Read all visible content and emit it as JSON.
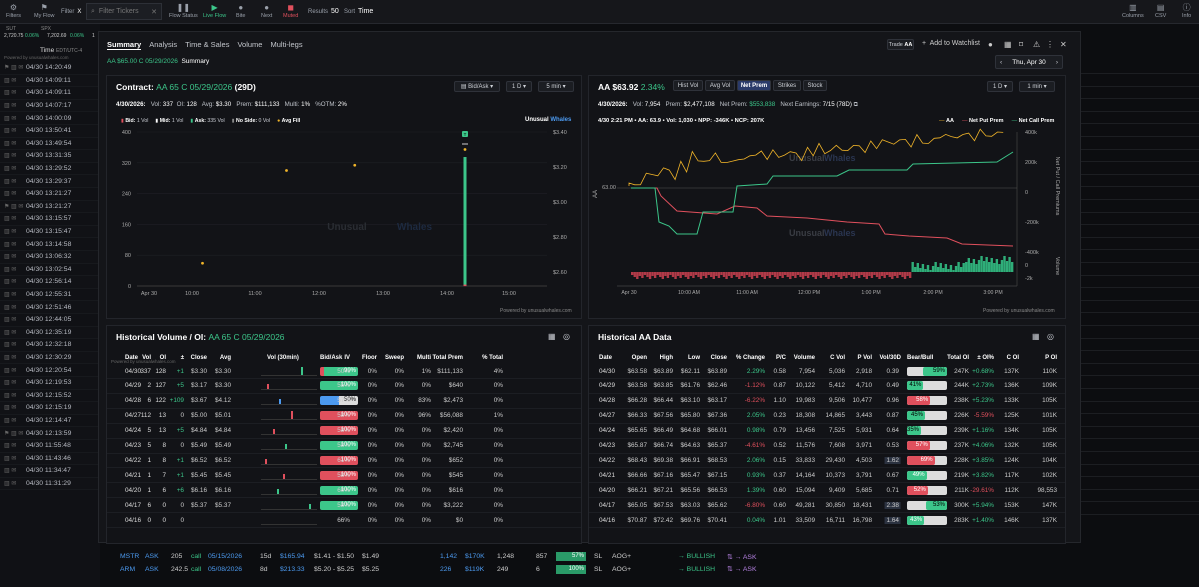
{
  "toolbar": {
    "items": [
      {
        "label": "Filters",
        "icon": "filter-icon",
        "glyph": "⚙"
      },
      {
        "label": "My Flow",
        "icon": "flag-icon",
        "glyph": "⚑"
      },
      {
        "label": "Flow Status",
        "icon": "pause-icon",
        "glyph": "❚❚"
      },
      {
        "label": "Live Flow",
        "icon": "play-icon",
        "glyph": "▶"
      },
      {
        "label": "Bite",
        "icon": "bite-icon",
        "glyph": "●"
      },
      {
        "label": "Next",
        "icon": "next-icon",
        "glyph": "●"
      },
      {
        "label": "Muted",
        "icon": "mute-icon",
        "glyph": "◼"
      }
    ],
    "filter_label": "Filter",
    "filter_x": "X",
    "search_placeholder": "Filter Tickers",
    "search_x": "✕",
    "results_label": "Results",
    "results_value": "50",
    "sort_label": "Sort",
    "sort_value": "Time",
    "right": [
      {
        "label": "Columns",
        "icon": "columns-icon",
        "glyph": "▥"
      },
      {
        "label": "CSV",
        "icon": "csv-icon",
        "glyph": "▤"
      },
      {
        "label": "Info",
        "icon": "info-icon",
        "glyph": "ⓘ"
      }
    ]
  },
  "indices": {
    "a_name": "SUT",
    "a_val": "2,720.75",
    "a_chg": "0.06%",
    "b_name": "SPX",
    "b_val": "7,202.69",
    "b_chg": "0.06%",
    "c": "1"
  },
  "flow_header": {
    "label": "Time",
    "tz": "EDT/UTC-4",
    "powered": "Powered by unusualwhales.com"
  },
  "flow_times": [
    "04/30 14:20:49",
    "04/30 14:09:11",
    "04/30 14:09:11",
    "04/30 14:07:17",
    "04/30 14:00:09",
    "04/30 13:50:41",
    "04/30 13:49:54",
    "04/30 13:31:35",
    "04/30 13:29:52",
    "04/30 13:29:37",
    "04/30 13:21:27",
    "04/30 13:21:27",
    "04/30 13:15:57",
    "04/30 13:15:47",
    "04/30 13:14:58",
    "04/30 13:06:32",
    "04/30 13:02:54",
    "04/30 12:56:14",
    "04/30 12:55:31",
    "04/30 12:51:46",
    "04/30 12:44:05",
    "04/30 12:35:19",
    "04/30 12:32:18",
    "04/30 12:30:29",
    "04/30 12:20:54",
    "04/30 12:19:53",
    "04/30 12:15:52",
    "04/30 12:15:19",
    "04/30 12:14:47",
    "04/30 12:13:59",
    "04/30 11:55:48",
    "04/30 11:43:46",
    "04/30 11:34:47",
    "04/30 11:31:29"
  ],
  "bottom_rows": [
    {
      "ticker": "MSTR",
      "side": "ASK",
      "size": "205",
      "type": "call",
      "exp": "05/15/2026",
      "dte": "15d",
      "spot": "$165.94",
      "bidask": "$1.41 - $1.50",
      "price": "$1.49",
      "vol": "1,142",
      "prem": "$170K",
      "oi": "1,248",
      "n": "857",
      "pct": "57%",
      "tag": "SL",
      "cond": "AOG+",
      "sent": "→ BULLISH",
      "extra": "⇅ → ASK"
    },
    {
      "ticker": "ARM",
      "side": "ASK",
      "size": "242.5",
      "type": "call",
      "exp": "05/08/2026",
      "dte": "8d",
      "spot": "$213.33",
      "bidask": "$5.20 - $5.25",
      "price": "$5.25",
      "vol": "226",
      "prem": "$119K",
      "oi": "249",
      "n": "6",
      "pct": "100%",
      "tag": "SL",
      "cond": "AOG+",
      "sent": "→ BULLISH",
      "extra": "⇅ → ASK"
    }
  ],
  "modal": {
    "tabs": [
      "Summary",
      "Analysis",
      "Time & Sales",
      "Volume",
      "Multi-legs"
    ],
    "contract_line": "AA $65.00 C 05/29/2026",
    "contract_tab": "Summary",
    "trade_btn": "Trade",
    "trade_tk": "AA",
    "watch": "Add to Watchlist",
    "date": "Thu, Apr 30"
  },
  "contract_panel": {
    "title_pre": "Contract:",
    "title_contract": "AA 65 C 05/29/2026",
    "title_dte": "(29D)",
    "btn_bidask": "Bid/Ask",
    "btn_range": "1 D",
    "btn_int": "5 min",
    "date": "4/30/2026:",
    "vol": "337",
    "oi": "128",
    "avg": "$3.30",
    "prem": "$111,133",
    "multi": "1%",
    "otm": "2%",
    "legend": [
      {
        "label": "Bid:",
        "val": "1 Vol",
        "color": "#e0505d"
      },
      {
        "label": "Mid:",
        "val": "1 Vol",
        "color": "#fff"
      },
      {
        "label": "Ask:",
        "val": "335 Vol",
        "color": "#3cc68a"
      },
      {
        "label": "No Side:",
        "val": "0 Vol",
        "color": "#888"
      },
      {
        "label": "Avg Fill",
        "val": "",
        "color": "#f0b429"
      }
    ],
    "brand_a": "Unusual",
    "brand_b": "Whales",
    "powered": "Powered by unusualwhales.com",
    "marker": "T"
  },
  "stock_panel": {
    "ticker": "AA",
    "price": "$63.92",
    "chg": "2.34%",
    "tabs": [
      "Hist Vol",
      "Avg Vol",
      "Net Prem",
      "Strikes",
      "Stock"
    ],
    "btn_range": "1 D",
    "btn_int": "1 min",
    "date": "4/30/2026:",
    "vol": "7,954",
    "prem": "$2,477,108",
    "netprem": "$553,838",
    "earnings": "7/15 (78D)",
    "tip": "4/30 2:21 PM • AA: 63.9 • Vol: 1,030 • NPP: -346K • NCP: 207K",
    "legend": [
      "AA",
      "Net Put Prem",
      "Net Call Prem"
    ],
    "brand_a": "Unusual",
    "brand_b": "Whales",
    "powered": "Powered by unusualwhales.com",
    "ylabel_left": "AA",
    "ylabel_right": "Net Put / Call Premiums",
    "ylabel_vol": "Volume"
  },
  "hist_vol": {
    "title_pre": "Historical Volume / OI:",
    "title_contract": "AA 65 C 05/29/2026",
    "powered": "Powered by unusualwhales.com",
    "headers": [
      "Date",
      "Vol",
      "OI",
      "±",
      "Close",
      "Avg",
      "Vol (30min)",
      "Bid/Ask",
      "IV",
      "Floor",
      "Sweep",
      "Multi",
      "Total Prem",
      "% Total"
    ],
    "rows": [
      [
        "04/30",
        "337",
        "128",
        "+1",
        "$3.30",
        "$3.30",
        "",
        "99%",
        "50%",
        "0%",
        "0%",
        "1%",
        "$111,133",
        "4%"
      ],
      [
        "04/29",
        "2",
        "127",
        "+5",
        "$3.17",
        "$3.30",
        "",
        "100%",
        "55%",
        "0%",
        "0%",
        "0%",
        "$640",
        "0%"
      ],
      [
        "04/28",
        "6",
        "122",
        "+109",
        "$3.67",
        "$4.12",
        "",
        "50%",
        "57%",
        "0%",
        "0%",
        "83%",
        "$2,473",
        "0%"
      ],
      [
        "04/27",
        "112",
        "13",
        "0",
        "$5.00",
        "$5.01",
        "",
        "100%",
        "58%",
        "0%",
        "0%",
        "96%",
        "$56,088",
        "1%"
      ],
      [
        "04/24",
        "5",
        "13",
        "+5",
        "$4.84",
        "$4.84",
        "",
        "100%",
        "58%",
        "0%",
        "0%",
        "0%",
        "$2,420",
        "0%"
      ],
      [
        "04/23",
        "5",
        "8",
        "0",
        "$5.49",
        "$5.49",
        "",
        "100%",
        "58%",
        "0%",
        "0%",
        "0%",
        "$2,745",
        "0%"
      ],
      [
        "04/22",
        "1",
        "8",
        "+1",
        "$6.52",
        "$6.52",
        "",
        "100%",
        "61%",
        "0%",
        "0%",
        "0%",
        "$652",
        "0%"
      ],
      [
        "04/21",
        "1",
        "7",
        "+1",
        "$5.45",
        "$5.45",
        "",
        "100%",
        "58%",
        "0%",
        "0%",
        "0%",
        "$545",
        "0%"
      ],
      [
        "04/20",
        "1",
        "6",
        "+6",
        "$6.16",
        "$6.16",
        "",
        "100%",
        "60%",
        "0%",
        "0%",
        "0%",
        "$616",
        "0%"
      ],
      [
        "04/17",
        "6",
        "0",
        "0",
        "$5.37",
        "$5.37",
        "",
        "100%",
        "58%",
        "0%",
        "0%",
        "0%",
        "$3,222",
        "0%"
      ],
      [
        "04/16",
        "0",
        "0",
        "0",
        "",
        "",
        "",
        "",
        "66%",
        "0%",
        "0%",
        "0%",
        "$0",
        "0%"
      ]
    ]
  },
  "hist_aa": {
    "title": "Historical AA Data",
    "headers": [
      "Date",
      "Open",
      "High",
      "Low",
      "Close",
      "% Change",
      "P/C",
      "Volume",
      "C Vol",
      "P Vol",
      "Vol/30D",
      "Bear/Bull",
      "Total OI",
      "± OI%",
      "C OI",
      "P OI"
    ],
    "rows": [
      [
        "04/30",
        "$63.58",
        "$63.89",
        "$62.11",
        "$63.89",
        "2.29%",
        "0.58",
        "7,954",
        "5,036",
        "2,918",
        "0.39",
        "59%",
        "247K",
        "+0.68%",
        "137K",
        "110K"
      ],
      [
        "04/29",
        "$63.58",
        "$63.85",
        "$61.76",
        "$62.46",
        "-1.12%",
        "0.87",
        "10,122",
        "5,412",
        "4,710",
        "0.49",
        "41%",
        "244K",
        "+2.73%",
        "136K",
        "109K"
      ],
      [
        "04/28",
        "$66.28",
        "$66.44",
        "$63.10",
        "$63.17",
        "-6.22%",
        "1.10",
        "19,983",
        "9,506",
        "10,477",
        "0.96",
        "58%",
        "238K",
        "+5.23%",
        "133K",
        "105K"
      ],
      [
        "04/27",
        "$66.33",
        "$67.56",
        "$65.80",
        "$67.36",
        "2.05%",
        "0.23",
        "18,308",
        "14,865",
        "3,443",
        "0.87",
        "45%",
        "226K",
        "-5.59%",
        "125K",
        "101K"
      ],
      [
        "04/24",
        "$65.65",
        "$66.49",
        "$64.68",
        "$66.01",
        "0.98%",
        "0.79",
        "13,456",
        "7,525",
        "5,931",
        "0.64",
        "35%",
        "239K",
        "+1.16%",
        "134K",
        "105K"
      ],
      [
        "04/23",
        "$65.87",
        "$66.74",
        "$64.63",
        "$65.37",
        "-4.61%",
        "0.52",
        "11,576",
        "7,608",
        "3,971",
        "0.53",
        "57%",
        "237K",
        "+4.06%",
        "132K",
        "105K"
      ],
      [
        "04/22",
        "$68.43",
        "$69.38",
        "$66.91",
        "$68.53",
        "2.06%",
        "0.15",
        "33,833",
        "29,430",
        "4,503",
        "1.62",
        "69%",
        "228K",
        "+3.85%",
        "124K",
        "104K"
      ],
      [
        "04/21",
        "$66.66",
        "$67.16",
        "$65.47",
        "$67.15",
        "0.93%",
        "0.37",
        "14,164",
        "10,373",
        "3,791",
        "0.67",
        "49%",
        "219K",
        "+3.82%",
        "117K",
        "102K"
      ],
      [
        "04/20",
        "$66.21",
        "$67.21",
        "$65.56",
        "$66.53",
        "1.39%",
        "0.60",
        "15,094",
        "9,409",
        "5,685",
        "0.71",
        "52%",
        "211K",
        "-29.61%",
        "112K",
        "98,553"
      ],
      [
        "04/17",
        "$65.05",
        "$67.53",
        "$63.03",
        "$65.62",
        "-6.80%",
        "0.60",
        "49,281",
        "30,850",
        "18,431",
        "2.38",
        "53%",
        "300K",
        "+5.94%",
        "153K",
        "147K"
      ],
      [
        "04/16",
        "$70.87",
        "$72.42",
        "$69.76",
        "$70.41",
        "0.04%",
        "1.01",
        "33,509",
        "16,711",
        "16,798",
        "1.64",
        "43%",
        "283K",
        "+1.40%",
        "146K",
        "137K"
      ]
    ]
  },
  "colors": {
    "green": "#3cc68a",
    "red": "#e0505d",
    "blue": "#4c9af0",
    "gold": "#f0b429",
    "accent": "#3d5cff"
  },
  "chart_data": [
    {
      "type": "bar",
      "title": "Contract: AA 65 C 05/29/2026",
      "x_ticks": [
        "Apr 30",
        "10:00",
        "11:00",
        "12:00",
        "13:00",
        "14:00",
        "15:00"
      ],
      "yleft_ticks": [
        "400",
        "320",
        "240",
        "160",
        "80",
        "0"
      ],
      "yright_ticks": [
        "$3.40",
        "$3.20",
        "$3.00",
        "$2.80",
        "$2.60"
      ],
      "ylim": [
        0,
        400
      ],
      "series": [
        {
          "name": "Ask",
          "values": [
            {
              "x": "14:20",
              "y": 335
            }
          ]
        },
        {
          "name": "Bid",
          "values": [
            {
              "x": "14:20",
              "y": 1
            }
          ]
        }
      ],
      "avg_fill": [
        {
          "x": "10:10",
          "y": 2.65
        },
        {
          "x": "11:30",
          "y": 3.18
        },
        {
          "x": "12:35",
          "y": 3.21
        },
        {
          "x": "14:20",
          "y": 3.3
        }
      ]
    },
    {
      "type": "line",
      "title": "AA",
      "x_ticks": [
        "Apr 30",
        "10:00 AM",
        "11:00 AM",
        "12:00 PM",
        "1:00 PM",
        "2:00 PM",
        "3:00 PM"
      ],
      "yleft_ticks": [
        "63.00"
      ],
      "yright_ticks": [
        "400k",
        "200k",
        "0",
        "-200k",
        "-400k"
      ],
      "yvol_ticks": [
        "0",
        "-2k"
      ],
      "series": [
        {
          "name": "AA"
        },
        {
          "name": "Net Put Prem"
        },
        {
          "name": "Net Call Prem"
        }
      ]
    }
  ]
}
